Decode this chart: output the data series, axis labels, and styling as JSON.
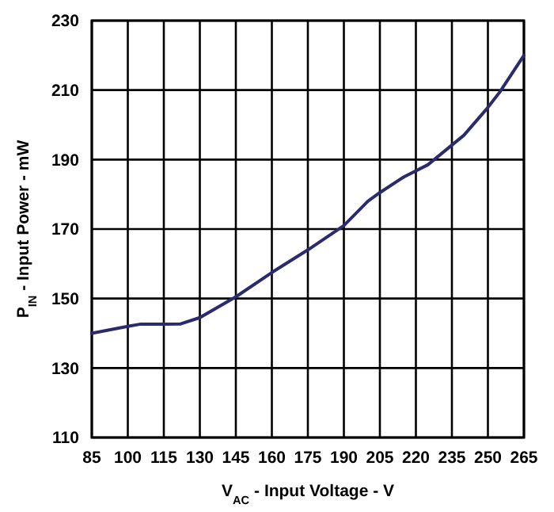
{
  "chart_data": {
    "type": "line",
    "xlabel": "V$_{AC}$ - Input Voltage - V",
    "ylabel": "P$_{IN}$ - Input Power - mW",
    "x": [
      85,
      100,
      105,
      115,
      122,
      130,
      145,
      160,
      175,
      190,
      200,
      205,
      215,
      225,
      240,
      250,
      255,
      265
    ],
    "series": [
      {
        "color": "#2a2a6e",
        "values": [
          140,
          142,
          142.6,
          142.6,
          142.7,
          144.5,
          150.5,
          157.5,
          164,
          171,
          178,
          180.5,
          185,
          188.5,
          197,
          205,
          209.5,
          220
        ]
      }
    ],
    "xlim": [
      85,
      265
    ],
    "xticks": [
      85,
      100,
      115,
      130,
      145,
      160,
      175,
      190,
      205,
      220,
      235,
      250,
      265
    ],
    "ylim": [
      110,
      230
    ],
    "yticks": [
      110,
      130,
      150,
      170,
      190,
      210,
      230
    ],
    "grid": true,
    "marker": "none",
    "line_style": "solid"
  }
}
